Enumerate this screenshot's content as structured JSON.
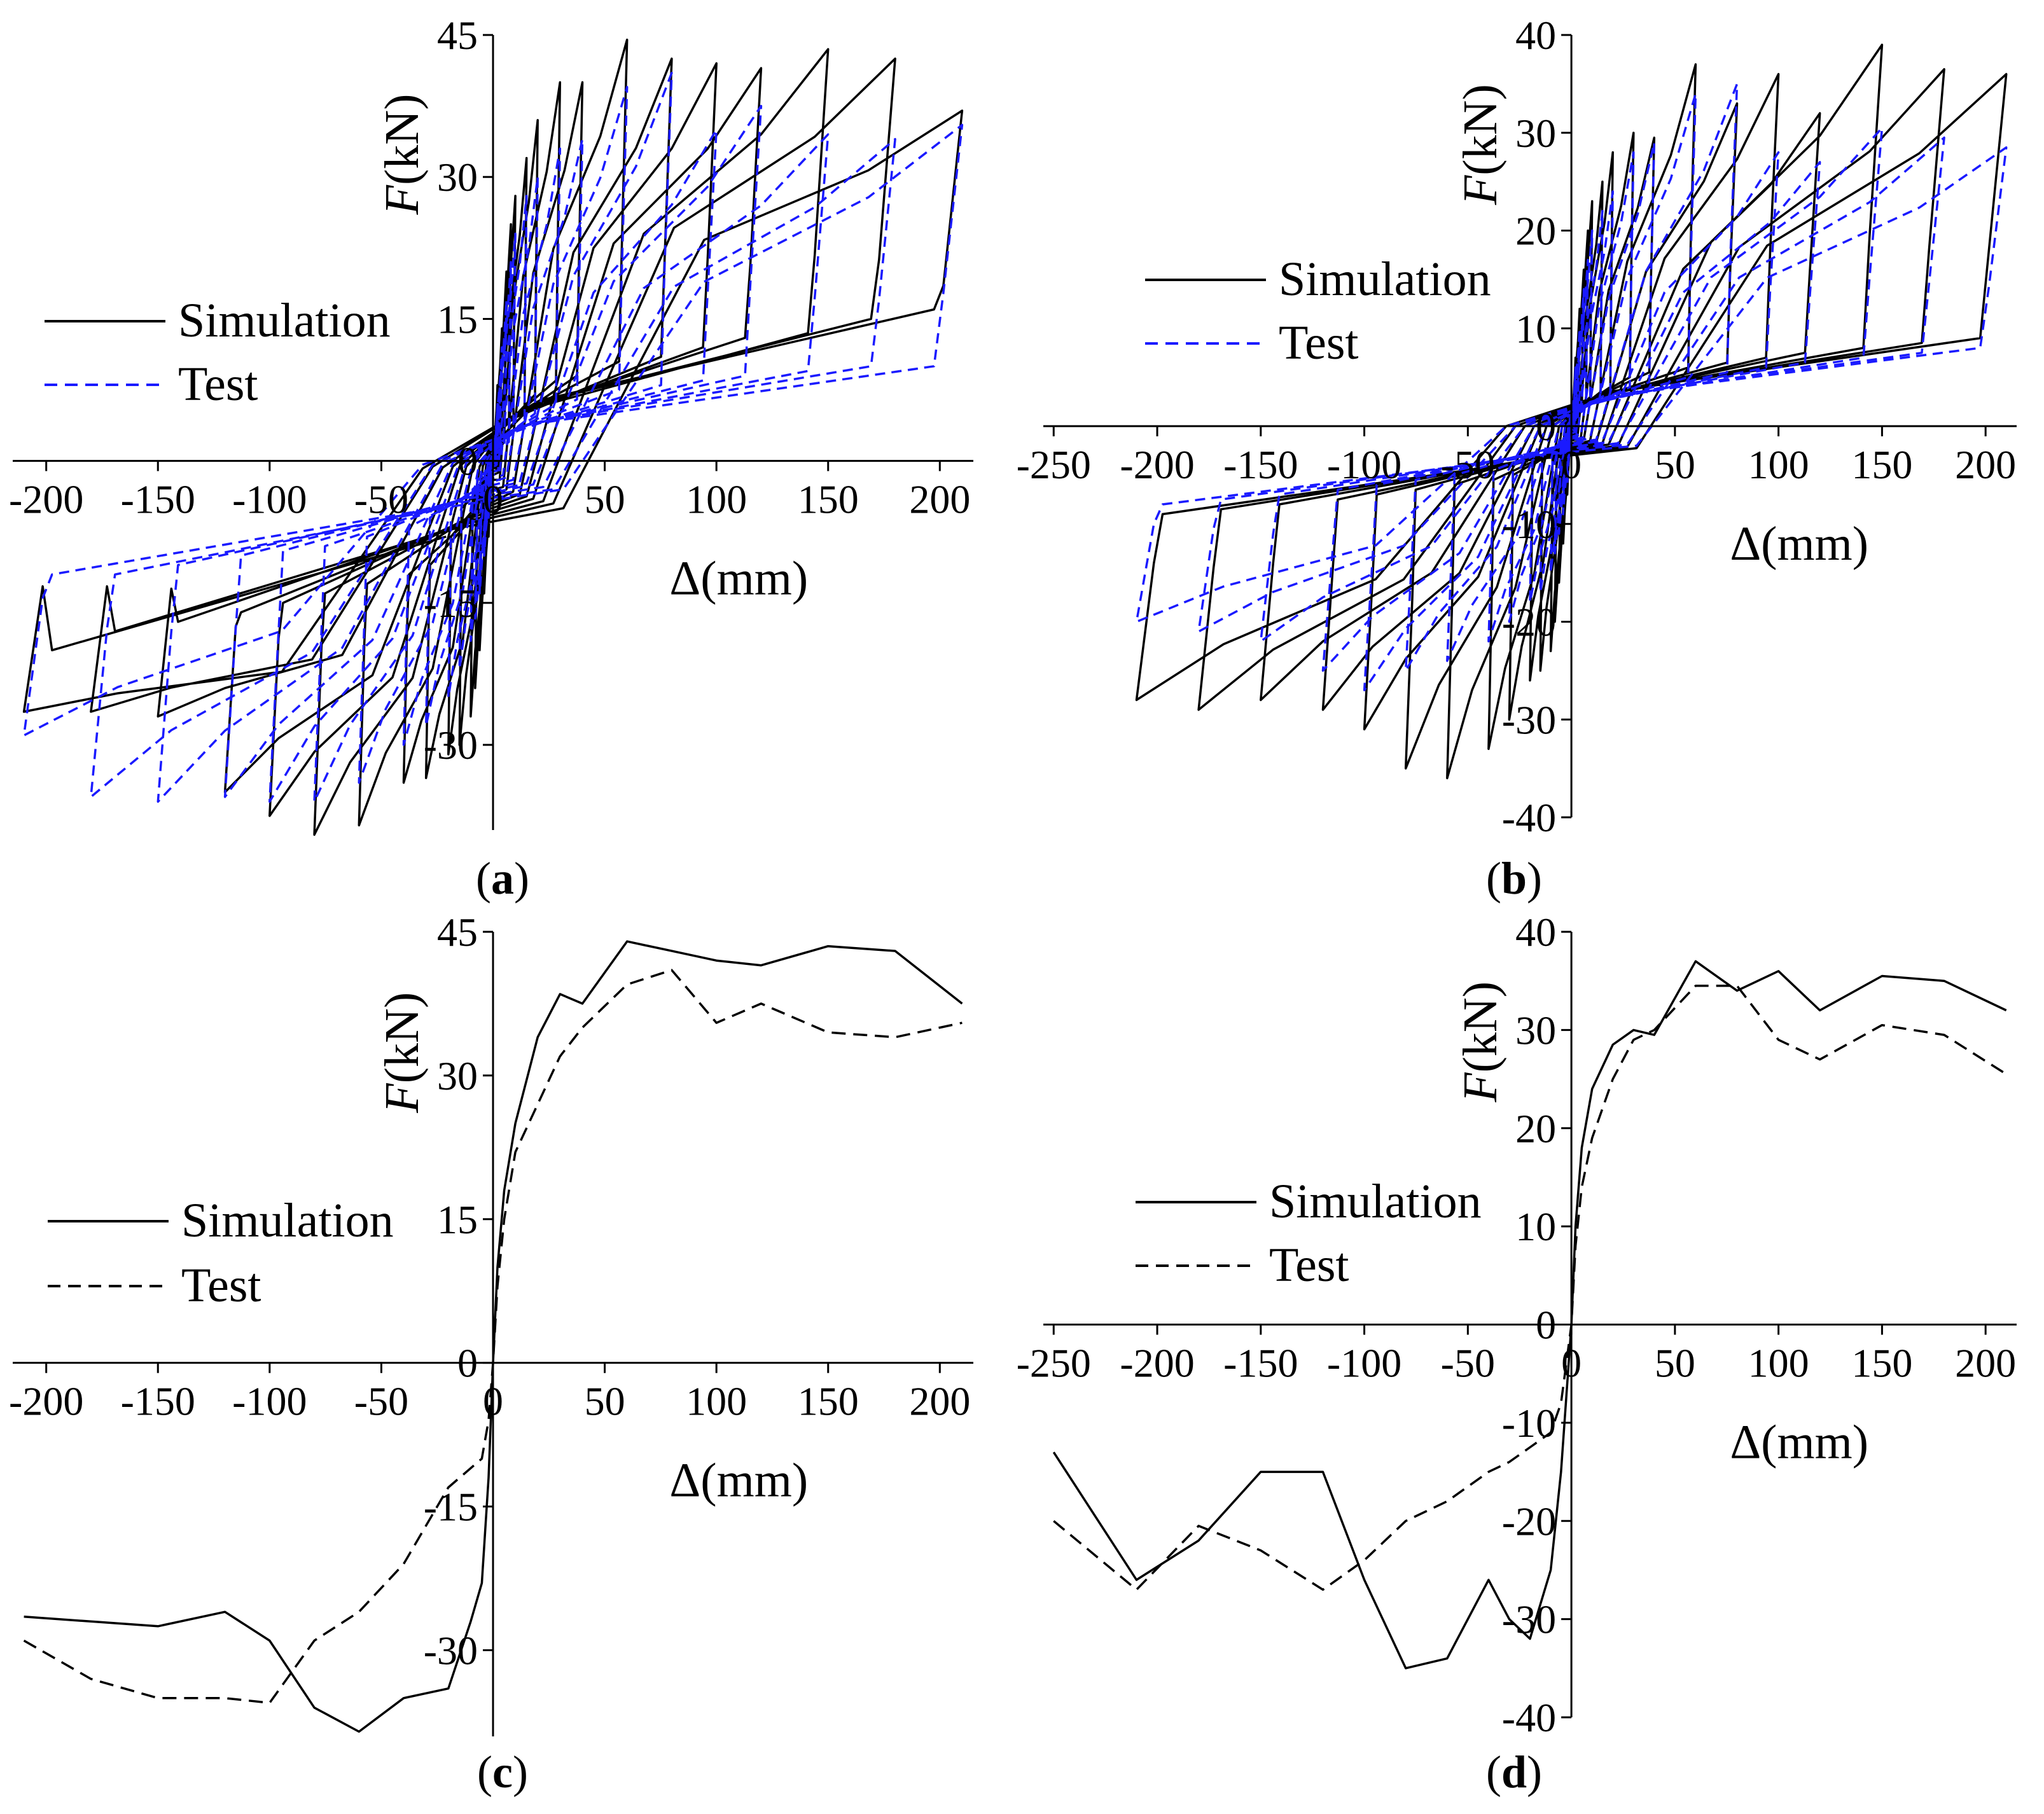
{
  "figure": {
    "legend": {
      "simulation": "Simulation",
      "test": "Test"
    },
    "colors": {
      "simulation": "#000000",
      "test_hysteresis": "#1a1aff",
      "test_skeleton": "#000000"
    },
    "panels": [
      "(a)",
      "(b)",
      "(c)",
      "(d)"
    ]
  },
  "chart_data": [
    {
      "id": "a",
      "type": "line",
      "subtype": "hysteresis",
      "panel_label": "(a)",
      "xlabel": "Δ(mm)",
      "ylabel": "F(kN)",
      "xlim": [
        -215,
        215
      ],
      "ylim": [
        -39,
        45
      ],
      "xticks": [
        -200,
        -150,
        -100,
        -50,
        0,
        50,
        100,
        150,
        200
      ],
      "yticks": [
        -30,
        -15,
        0,
        15,
        30,
        45
      ],
      "legend_position": "upper-left",
      "series": [
        {
          "name": "Simulation",
          "style": "solid",
          "amplitudes": [
            2,
            4,
            6,
            8,
            10,
            15,
            20,
            30,
            40,
            60,
            80,
            100,
            120,
            150,
            180,
            210
          ],
          "peak_positive": [
            8,
            14,
            20,
            25,
            28,
            32,
            36,
            40,
            40,
            44.5,
            42.5,
            42,
            41.5,
            43.5,
            42.5,
            37
          ],
          "peak_negative": [
            -8,
            -14,
            -20,
            -24,
            -27,
            -30,
            -31,
            -33.5,
            -34,
            -38.5,
            -39.5,
            -37.5,
            -35,
            -27,
            -26.5,
            -26.5
          ],
          "unload_positive": [
            0,
            1,
            2,
            3,
            4,
            5,
            7,
            8.5,
            9,
            10.5,
            11,
            12,
            13,
            13.5,
            15,
            16
          ],
          "unload_negative": [
            0,
            -1,
            -2,
            -3,
            -4,
            -5,
            -8,
            -11,
            -12,
            -13,
            -14,
            -15,
            -16,
            -17,
            -18,
            -20
          ]
        },
        {
          "name": "Test",
          "style": "dashed",
          "amplitudes": [
            2,
            4,
            6,
            8,
            10,
            15,
            20,
            30,
            40,
            60,
            80,
            100,
            120,
            150,
            180,
            210
          ],
          "peak_positive": [
            6,
            12,
            17,
            21,
            24,
            28,
            30,
            33,
            34,
            39.5,
            41,
            35,
            37.5,
            34.5,
            34,
            35.5
          ],
          "peak_negative": [
            -6,
            -10,
            -14,
            -17,
            -19,
            -22,
            -25,
            -28,
            -30,
            -34,
            -36,
            -36,
            -35.5,
            -36,
            -35.5,
            -29
          ],
          "unload_positive": [
            0,
            1,
            1.5,
            2,
            3,
            4,
            5,
            6,
            6.5,
            7.5,
            8,
            8.5,
            9,
            9.5,
            10,
            10
          ],
          "unload_negative": [
            0,
            -1,
            -1.5,
            -2,
            -3,
            -4,
            -5,
            -6,
            -7,
            -8,
            -9,
            -9.5,
            -10,
            -11,
            -12,
            -12
          ]
        }
      ]
    },
    {
      "id": "b",
      "type": "line",
      "subtype": "hysteresis",
      "panel_label": "(b)",
      "xlabel": "Δ(mm)",
      "ylabel": "F(kN)",
      "xlim": [
        -255,
        215
      ],
      "ylim": [
        -40,
        40
      ],
      "xticks": [
        -250,
        -200,
        -150,
        -100,
        -50,
        0,
        50,
        100,
        150,
        200
      ],
      "yticks": [
        -40,
        -30,
        -20,
        -10,
        0,
        10,
        20,
        30,
        40
      ],
      "legend_position": "upper-left",
      "series": [
        {
          "name": "Simulation",
          "style": "solid",
          "amplitudes": [
            2,
            4,
            6,
            8,
            10,
            15,
            20,
            30,
            40,
            60,
            80,
            100,
            120,
            150,
            180,
            210
          ],
          "peak_positive": [
            7,
            12,
            16,
            20,
            23,
            25,
            28,
            30,
            29.5,
            37,
            33,
            36,
            32,
            39,
            36.5,
            36
          ],
          "peak_negative": [
            -7,
            -12,
            -16,
            -20,
            -23,
            -25,
            -26,
            -30,
            -33,
            -36,
            -35,
            -31,
            -29,
            -28,
            -29,
            -28
          ],
          "unload_positive": [
            0,
            1,
            2,
            2.5,
            3,
            3.5,
            4,
            5,
            5.5,
            6,
            6.5,
            7,
            7.5,
            8,
            8.5,
            9
          ],
          "unload_negative": [
            0,
            -1,
            -2,
            -2.5,
            -3,
            -3.5,
            -4,
            -5,
            -5.5,
            -6,
            -6.5,
            -7,
            -7.5,
            -8,
            -8.5,
            -9
          ]
        },
        {
          "name": "Test",
          "style": "dashed",
          "amplitudes": [
            2,
            4,
            6,
            8,
            10,
            15,
            20,
            30,
            40,
            60,
            80,
            100,
            120,
            150,
            180,
            210
          ],
          "peak_positive": [
            6,
            10,
            14,
            17,
            20,
            22,
            24,
            28,
            29,
            34,
            35,
            28,
            27,
            30.5,
            29.5,
            28.5
          ],
          "peak_negative": [
            -6,
            -9,
            -11,
            -13,
            -15,
            -17,
            -18,
            -20,
            -22,
            -24,
            -25,
            -27,
            -25,
            -22,
            -21,
            -20
          ],
          "unload_positive": [
            0,
            1,
            1.5,
            2,
            2.5,
            3,
            3.5,
            4,
            4.5,
            5,
            5.5,
            6,
            6.5,
            7,
            7.5,
            8
          ],
          "unload_negative": [
            0,
            -1,
            -1.5,
            -2,
            -2.5,
            -3,
            -3.5,
            -4,
            -4.5,
            -5,
            -5.5,
            -6,
            -6.5,
            -7,
            -7.5,
            -8
          ]
        }
      ]
    },
    {
      "id": "c",
      "type": "line",
      "subtype": "skeleton",
      "panel_label": "(c)",
      "xlabel": "Δ(mm)",
      "ylabel": "F(kN)",
      "xlim": [
        -215,
        215
      ],
      "ylim": [
        -39,
        45
      ],
      "xticks": [
        -200,
        -150,
        -100,
        -50,
        0,
        50,
        100,
        150,
        200
      ],
      "yticks": [
        -30,
        -15,
        0,
        15,
        30,
        45
      ],
      "legend_position": "center-left",
      "series": [
        {
          "name": "Simulation",
          "style": "solid",
          "x": [
            -210,
            -180,
            -150,
            -120,
            -100,
            -80,
            -60,
            -40,
            -20,
            -10,
            -5,
            -2,
            0,
            2,
            5,
            10,
            20,
            30,
            40,
            60,
            80,
            100,
            120,
            150,
            180,
            210
          ],
          "y": [
            -26.5,
            -27,
            -27.5,
            -26,
            -29,
            -36,
            -38.5,
            -35,
            -34,
            -27,
            -23,
            -12,
            0,
            10,
            18,
            25,
            34,
            38.5,
            37.5,
            44,
            43,
            42,
            41.5,
            43.5,
            43,
            37.5
          ]
        },
        {
          "name": "Test",
          "style": "dashed",
          "x": [
            -210,
            -180,
            -150,
            -120,
            -100,
            -80,
            -60,
            -40,
            -20,
            -10,
            -5,
            -2,
            0,
            2,
            5,
            10,
            20,
            30,
            40,
            60,
            80,
            100,
            120,
            150,
            180,
            210
          ],
          "y": [
            -29,
            -33,
            -35,
            -35,
            -35.5,
            -29,
            -26,
            -21,
            -13,
            -11,
            -10,
            -6,
            0,
            8,
            15,
            22,
            27,
            32,
            35,
            39.5,
            41,
            35.5,
            37.5,
            34.5,
            34,
            35.5
          ]
        }
      ]
    },
    {
      "id": "d",
      "type": "line",
      "subtype": "skeleton",
      "panel_label": "(d)",
      "xlabel": "Δ(mm)",
      "ylabel": "F(kN)",
      "xlim": [
        -255,
        215
      ],
      "ylim": [
        -40,
        40
      ],
      "xticks": [
        -250,
        -200,
        -150,
        -100,
        -50,
        0,
        50,
        100,
        150,
        200
      ],
      "yticks": [
        -40,
        -30,
        -20,
        -10,
        0,
        10,
        20,
        30,
        40
      ],
      "legend_position": "center-left",
      "series": [
        {
          "name": "Simulation",
          "style": "solid",
          "x": [
            -250,
            -210,
            -180,
            -150,
            -120,
            -100,
            -80,
            -60,
            -40,
            -30,
            -20,
            -10,
            -5,
            0,
            2,
            5,
            10,
            20,
            30,
            40,
            60,
            80,
            100,
            120,
            150,
            180,
            210
          ],
          "y": [
            -13,
            -26,
            -22,
            -15,
            -15,
            -26,
            -35,
            -34,
            -26,
            -30,
            -32,
            -25,
            -15,
            0,
            10,
            18,
            24,
            28.5,
            30,
            29.5,
            37,
            34,
            36,
            32,
            35.5,
            35,
            32
          ]
        },
        {
          "name": "Test",
          "style": "dashed",
          "x": [
            -250,
            -210,
            -180,
            -150,
            -120,
            -100,
            -80,
            -60,
            -40,
            -30,
            -20,
            -10,
            -5,
            0,
            2,
            5,
            10,
            20,
            30,
            40,
            60,
            80,
            100,
            120,
            150,
            180,
            210
          ],
          "y": [
            -20,
            -27,
            -20.5,
            -23,
            -27,
            -24,
            -20,
            -18,
            -15,
            -14,
            -12.5,
            -11,
            -8,
            0,
            8,
            14,
            19,
            25,
            29,
            30,
            34.5,
            34.5,
            29,
            27,
            30.5,
            29.5,
            25.5
          ]
        }
      ]
    }
  ]
}
